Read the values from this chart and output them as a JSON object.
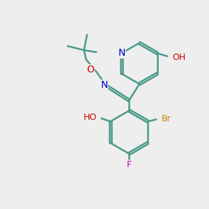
{
  "background_color": "#eeeeee",
  "bond_color": "#4a9a8a",
  "bond_width": 1.8,
  "atom_colors": {
    "N": "#0000cc",
    "O": "#cc0000",
    "Br": "#cc8800",
    "F": "#bb00bb",
    "C": "#4a9a8a",
    "H": "#888888"
  },
  "font_size": 10,
  "label_font_size": 10
}
